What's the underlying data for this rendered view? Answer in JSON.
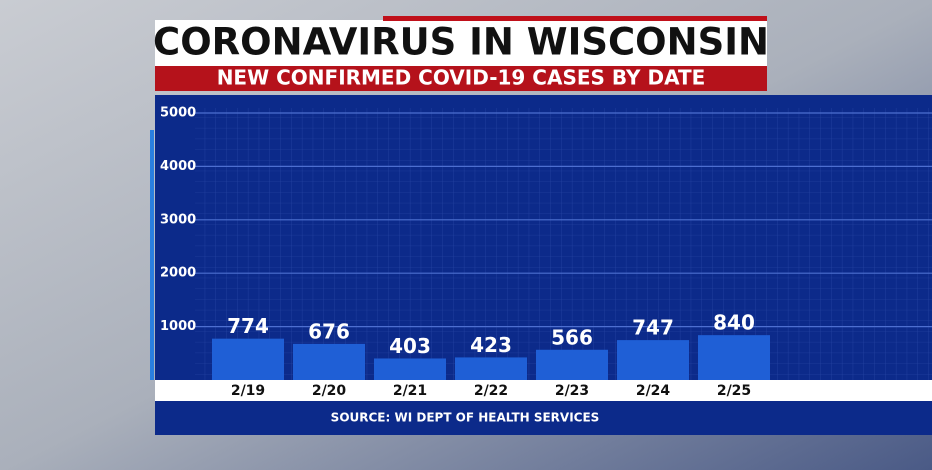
{
  "chart_data": {
    "type": "bar",
    "title": "CORONAVIRUS IN WISCONSIN",
    "subtitle": "NEW CONFIRMED COVID-19 CASES BY DATE",
    "categories": [
      "2/19",
      "2/20",
      "2/21",
      "2/22",
      "2/23",
      "2/24",
      "2/25"
    ],
    "values": [
      774,
      676,
      403,
      423,
      566,
      747,
      840
    ],
    "color": "#1f5fd6",
    "ylim": [
      0,
      5000
    ],
    "yticks": [
      1000,
      2000,
      3000,
      4000,
      5000
    ],
    "grid": true,
    "source": "SOURCE: WI DEPT OF HEALTH SERVICES"
  }
}
